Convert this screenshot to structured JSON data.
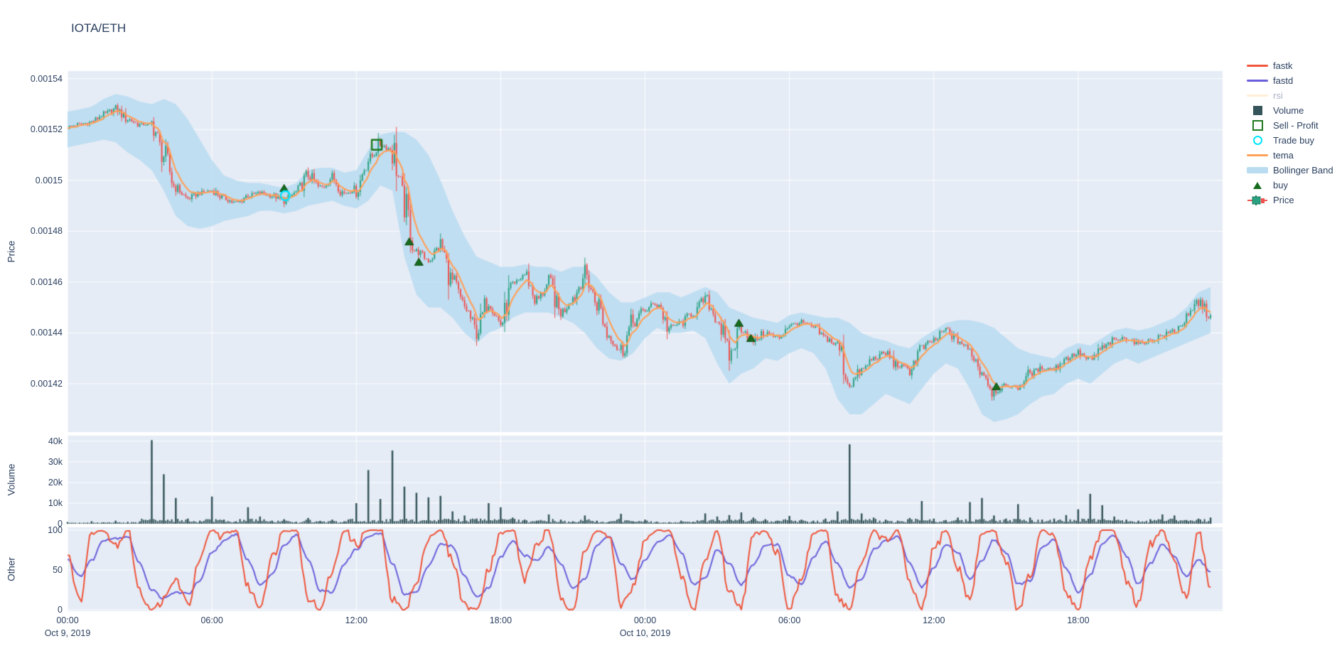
{
  "title": "IOTA/ETH",
  "colors": {
    "text": "#2a3f5f",
    "muted_text": "#a9b3c7",
    "panel_bg": "#e5ecf6",
    "grid": "#ffffff",
    "candle_up": "#2ba181",
    "candle_down": "#ef5350",
    "tema": "#ffa15a",
    "fastk": "#ef553b",
    "fastd": "#6a5fdb",
    "rsi": "#ffd9a8",
    "bollinger": "#badcf1",
    "volume_bar": "#35555a",
    "buy_marker": "#176b1d",
    "sell_profit": "#1f7a1f",
    "trade_buy": "#00e5ff"
  },
  "legend": {
    "items": [
      {
        "label": "fastk",
        "glyph": "line",
        "color": "#ef553b",
        "muted": false
      },
      {
        "label": "fastd",
        "glyph": "line",
        "color": "#6a5fdb",
        "muted": false
      },
      {
        "label": "rsi",
        "glyph": "line",
        "color": "#ffd9a8",
        "muted": true
      },
      {
        "label": "Volume",
        "glyph": "square",
        "color": "#35555a",
        "muted": false
      },
      {
        "label": "Sell - Profit",
        "glyph": "osquare",
        "color": "#1f7a1f",
        "muted": false
      },
      {
        "label": "Trade buy",
        "glyph": "ocircle",
        "color": "#00e5ff",
        "muted": false
      },
      {
        "label": "tema",
        "glyph": "line",
        "color": "#ffa15a",
        "muted": false
      },
      {
        "label": "Bollinger Band",
        "glyph": "band",
        "color": "#badcf1",
        "muted": false
      },
      {
        "label": "buy",
        "glyph": "triangle",
        "color": "#176b1d",
        "muted": false
      },
      {
        "label": "Price",
        "glyph": "candle",
        "color": "#2ba181",
        "muted": false
      }
    ]
  },
  "chart_data": {
    "type": "candlestick+volume+oscillator",
    "title": "IOTA/ETH",
    "x_unit": "hours since Oct 9 2019 00:00",
    "sample_step_hours": 0.5,
    "price_scale": 1e-06,
    "axes": {
      "price": {
        "title": "Price",
        "ylim_e6": [
          1401,
          1543
        ],
        "ticks": [
          {
            "v_e6": 1540,
            "label": "0.00154"
          },
          {
            "v_e6": 1520,
            "label": "0.00152"
          },
          {
            "v_e6": 1500,
            "label": "0.0015"
          },
          {
            "v_e6": 1480,
            "label": "0.00148"
          },
          {
            "v_e6": 1460,
            "label": "0.00146"
          },
          {
            "v_e6": 1440,
            "label": "0.00144"
          },
          {
            "v_e6": 1420,
            "label": "0.00142"
          }
        ]
      },
      "volume": {
        "title": "Volume",
        "ylim_k": [
          0,
          42.7
        ],
        "ticks": [
          {
            "v_k": 0,
            "label": "0"
          },
          {
            "v_k": 10,
            "label": "10k"
          },
          {
            "v_k": 20,
            "label": "20k"
          },
          {
            "v_k": 30,
            "label": "30k"
          },
          {
            "v_k": 40,
            "label": "40k"
          }
        ]
      },
      "other": {
        "title": "Other",
        "ylim": [
          0,
          100
        ],
        "ticks": [
          {
            "v": 0,
            "label": "0"
          },
          {
            "v": 50,
            "label": "50"
          },
          {
            "v": 100,
            "label": "100"
          }
        ]
      },
      "x": {
        "ticks": [
          {
            "t": 0,
            "label": "00:00",
            "date": "Oct 9, 2019"
          },
          {
            "t": 6,
            "label": "06:00",
            "date": ""
          },
          {
            "t": 12,
            "label": "12:00",
            "date": ""
          },
          {
            "t": 18,
            "label": "18:00",
            "date": ""
          },
          {
            "t": 24,
            "label": "00:00",
            "date": "Oct 10, 2019"
          },
          {
            "t": 30,
            "label": "06:00",
            "date": ""
          },
          {
            "t": 36,
            "label": "12:00",
            "date": ""
          },
          {
            "t": 42,
            "label": "18:00",
            "date": ""
          }
        ]
      }
    },
    "close_e6": [
      1521,
      1522,
      1523,
      1526,
      1528,
      1524,
      1522,
      1522,
      1510,
      1497,
      1493,
      1495,
      1496,
      1493,
      1491,
      1494,
      1495,
      1494,
      1492,
      1495,
      1502,
      1497,
      1501,
      1495,
      1497,
      1508,
      1514,
      1512,
      1490,
      1472,
      1469,
      1474,
      1460,
      1450,
      1441,
      1453,
      1444,
      1458,
      1463,
      1453,
      1459,
      1448,
      1454,
      1463,
      1452,
      1439,
      1433,
      1444,
      1449,
      1452,
      1442,
      1444,
      1448,
      1453,
      1446,
      1431,
      1442,
      1437,
      1440,
      1438,
      1443,
      1444,
      1442,
      1438,
      1435,
      1420,
      1425,
      1430,
      1432,
      1427,
      1426,
      1434,
      1437,
      1441,
      1437,
      1433,
      1425,
      1417,
      1419,
      1419,
      1424,
      1426,
      1426,
      1430,
      1432,
      1429,
      1434,
      1437,
      1438,
      1436,
      1437,
      1439,
      1441,
      1445,
      1452,
      1447
    ],
    "bb_upper_e6": [
      1527,
      1528,
      1529,
      1532,
      1534,
      1533,
      1531,
      1530,
      1532,
      1530,
      1524,
      1516,
      1508,
      1502,
      1500,
      1499,
      1499,
      1498,
      1497,
      1499,
      1504,
      1505,
      1505,
      1503,
      1504,
      1512,
      1518,
      1519,
      1519,
      1516,
      1510,
      1500,
      1488,
      1478,
      1470,
      1468,
      1466,
      1466,
      1467,
      1466,
      1466,
      1464,
      1466,
      1466,
      1462,
      1456,
      1452,
      1452,
      1454,
      1456,
      1456,
      1454,
      1456,
      1458,
      1456,
      1450,
      1448,
      1446,
      1445,
      1444,
      1447,
      1448,
      1447,
      1446,
      1446,
      1444,
      1440,
      1438,
      1437,
      1435,
      1434,
      1438,
      1441,
      1444,
      1445,
      1445,
      1444,
      1442,
      1438,
      1434,
      1432,
      1431,
      1430,
      1434,
      1436,
      1435,
      1438,
      1441,
      1442,
      1441,
      1442,
      1444,
      1446,
      1450,
      1456,
      1458
    ],
    "bb_lower_e6": [
      1513,
      1514,
      1515,
      1516,
      1515,
      1511,
      1508,
      1504,
      1496,
      1486,
      1482,
      1481,
      1482,
      1484,
      1485,
      1486,
      1488,
      1488,
      1487,
      1488,
      1490,
      1491,
      1492,
      1490,
      1489,
      1492,
      1498,
      1496,
      1470,
      1455,
      1450,
      1450,
      1446,
      1440,
      1436,
      1440,
      1442,
      1446,
      1448,
      1448,
      1448,
      1446,
      1444,
      1440,
      1434,
      1430,
      1429,
      1432,
      1438,
      1442,
      1440,
      1440,
      1441,
      1438,
      1428,
      1420,
      1424,
      1426,
      1430,
      1429,
      1432,
      1434,
      1432,
      1426,
      1414,
      1408,
      1408,
      1412,
      1416,
      1414,
      1412,
      1418,
      1424,
      1428,
      1426,
      1418,
      1408,
      1405,
      1406,
      1408,
      1412,
      1415,
      1416,
      1420,
      1422,
      1420,
      1424,
      1428,
      1430,
      1428,
      1430,
      1432,
      1434,
      1436,
      1438,
      1440
    ],
    "volume_k": [
      0.8,
      0.5,
      1.2,
      0.7,
      1.5,
      0.9,
      1.1,
      40.5,
      24,
      12.5,
      2.5,
      1.5,
      13.2,
      2,
      1.2,
      8,
      3.5,
      1.5,
      2.2,
      1,
      2.8,
      1.4,
      2,
      1.2,
      10,
      26,
      12,
      35.5,
      18,
      15,
      12.8,
      13.5,
      6,
      4,
      2.5,
      10,
      8,
      3,
      2,
      1.5,
      4.5,
      2,
      1.2,
      4,
      1.5,
      1,
      4.8,
      1.2,
      2,
      1,
      0.8,
      1.5,
      1,
      5,
      3.5,
      4.2,
      5.5,
      3,
      2.2,
      1.5,
      3.8,
      2,
      1.5,
      2.5,
      6,
      38.5,
      5,
      3,
      2,
      1.5,
      2.8,
      11,
      2.5,
      1.8,
      3,
      10.5,
      12.5,
      4,
      2.5,
      9.5,
      3,
      2,
      2.5,
      4.2,
      7,
      14.5,
      9,
      3.5,
      2,
      1.5,
      2.2,
      4.5,
      4,
      1.8,
      2.5,
      3
    ],
    "fastk": [
      72,
      10,
      96,
      100,
      82,
      100,
      22,
      0,
      12,
      38,
      6,
      62,
      100,
      92,
      100,
      28,
      4,
      66,
      100,
      100,
      16,
      0,
      48,
      100,
      82,
      100,
      100,
      12,
      0,
      32,
      92,
      100,
      62,
      6,
      0,
      52,
      96,
      100,
      38,
      82,
      100,
      16,
      0,
      72,
      100,
      92,
      6,
      28,
      86,
      100,
      100,
      42,
      0,
      62,
      100,
      22,
      6,
      92,
      100,
      72,
      0,
      38,
      96,
      100,
      16,
      0,
      58,
      100,
      86,
      100,
      32,
      0,
      76,
      100,
      52,
      12,
      96,
      100,
      62,
      0,
      42,
      100,
      92,
      22,
      0,
      66,
      100,
      100,
      38,
      6,
      82,
      100,
      58,
      16,
      96,
      28
    ],
    "fastd": [
      64,
      42,
      62,
      88,
      90,
      92,
      58,
      25,
      14,
      22,
      20,
      36,
      72,
      86,
      95,
      62,
      32,
      44,
      82,
      94,
      64,
      24,
      22,
      58,
      76,
      92,
      96,
      58,
      20,
      22,
      56,
      82,
      80,
      42,
      16,
      28,
      66,
      86,
      68,
      62,
      78,
      58,
      28,
      38,
      82,
      92,
      58,
      38,
      62,
      84,
      94,
      72,
      32,
      40,
      76,
      58,
      32,
      56,
      82,
      82,
      42,
      32,
      66,
      86,
      58,
      28,
      38,
      76,
      86,
      92,
      58,
      28,
      52,
      82,
      72,
      38,
      62,
      88,
      72,
      32,
      36,
      78,
      88,
      52,
      22,
      44,
      82,
      94,
      68,
      32,
      58,
      82,
      66,
      42,
      62,
      48
    ],
    "markers": {
      "buy": [
        {
          "t": 9.0,
          "p_e6": 1497
        },
        {
          "t": 14.2,
          "p_e6": 1476
        },
        {
          "t": 14.6,
          "p_e6": 1468
        },
        {
          "t": 27.9,
          "p_e6": 1444
        },
        {
          "t": 28.4,
          "p_e6": 1438
        },
        {
          "t": 38.6,
          "p_e6": 1419
        }
      ],
      "trade_buy": [
        {
          "t": 9.05,
          "p_e6": 1494
        }
      ],
      "sell_profit": [
        {
          "t": 12.85,
          "p_e6": 1514
        }
      ]
    }
  }
}
